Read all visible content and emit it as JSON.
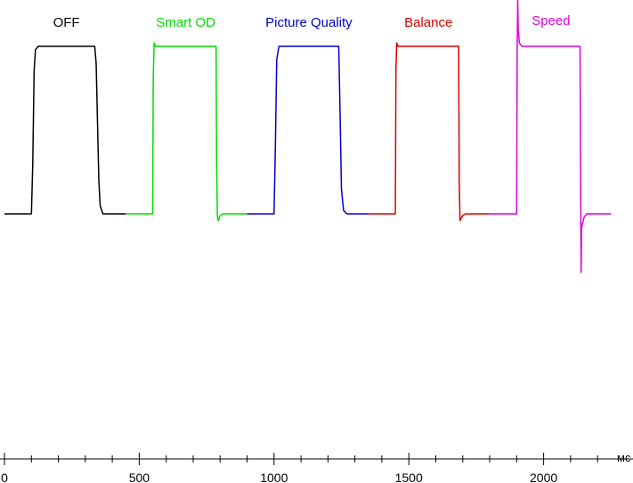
{
  "chart_data": {
    "type": "line",
    "x_unit": "мс",
    "xlim": [
      0,
      2250
    ],
    "ylim": [
      -0.35,
      1.1
    ],
    "x_major_ticks": [
      0,
      500,
      1000,
      1500,
      2000
    ],
    "x_tick_labels": [
      "0",
      "500",
      "1000",
      "1500",
      "2000"
    ],
    "x_minor_step": 100,
    "grid": false,
    "legend": "labels above each series segment",
    "series": [
      {
        "name": "OFF",
        "color": "#000000",
        "points": [
          [
            0,
            0
          ],
          [
            100,
            0
          ],
          [
            105,
            0.3
          ],
          [
            110,
            0.85
          ],
          [
            115,
            0.98
          ],
          [
            125,
            1.0
          ],
          [
            335,
            1.0
          ],
          [
            340,
            0.9
          ],
          [
            345,
            0.55
          ],
          [
            350,
            0.2
          ],
          [
            355,
            0.05
          ],
          [
            365,
            0.0
          ],
          [
            450,
            0
          ]
        ]
      },
      {
        "name": "Smart OD",
        "color": "#00dd00",
        "points": [
          [
            450,
            0
          ],
          [
            550,
            0
          ],
          [
            552,
            0.8
          ],
          [
            555,
            1.02
          ],
          [
            560,
            1.0
          ],
          [
            785,
            1.0
          ],
          [
            787,
            0.3
          ],
          [
            790,
            -0.02
          ],
          [
            793,
            -0.04
          ],
          [
            800,
            -0.01
          ],
          [
            810,
            0
          ],
          [
            900,
            0
          ]
        ]
      },
      {
        "name": "Picture Quality",
        "color": "#0000cc",
        "points": [
          [
            900,
            0
          ],
          [
            1000,
            0
          ],
          [
            1005,
            0.4
          ],
          [
            1010,
            0.92
          ],
          [
            1018,
            1.0
          ],
          [
            1240,
            1.0
          ],
          [
            1245,
            0.6
          ],
          [
            1250,
            0.15
          ],
          [
            1258,
            0.02
          ],
          [
            1270,
            0
          ],
          [
            1350,
            0
          ]
        ]
      },
      {
        "name": "Balance",
        "color": "#dd0000",
        "points": [
          [
            1350,
            0
          ],
          [
            1450,
            0
          ],
          [
            1452,
            0.85
          ],
          [
            1455,
            1.02
          ],
          [
            1460,
            1.0
          ],
          [
            1685,
            1.0
          ],
          [
            1687,
            0.2
          ],
          [
            1690,
            -0.04
          ],
          [
            1693,
            -0.03
          ],
          [
            1700,
            -0.01
          ],
          [
            1710,
            0
          ],
          [
            1800,
            0
          ]
        ]
      },
      {
        "name": "Speed",
        "color": "#dd00dd",
        "points": [
          [
            1800,
            0
          ],
          [
            1900,
            0
          ],
          [
            1902,
            0.98
          ],
          [
            1904,
            1.28
          ],
          [
            1906,
            1.1
          ],
          [
            1910,
            1.02
          ],
          [
            1920,
            1.0
          ],
          [
            2135,
            1.0
          ],
          [
            2137,
            0.3
          ],
          [
            2139,
            -0.35
          ],
          [
            2141,
            -0.08
          ],
          [
            2150,
            -0.02
          ],
          [
            2160,
            0
          ],
          [
            2250,
            0
          ]
        ]
      }
    ]
  }
}
